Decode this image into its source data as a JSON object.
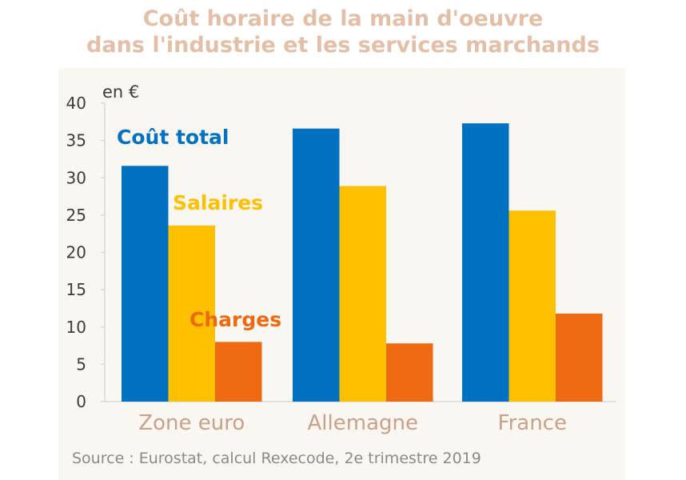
{
  "chart_data": {
    "type": "bar",
    "title_line1": "Coût horaire de la main d'oeuvre",
    "title_line2": "dans l'industrie et les services marchands",
    "unit_label": "en €",
    "categories": [
      "Zone euro",
      "Allemagne",
      "France"
    ],
    "series": [
      {
        "name": "Coût total",
        "color": "#0070c0",
        "values": [
          31.6,
          36.6,
          37.3
        ]
      },
      {
        "name": "Salaires",
        "color": "#ffc000",
        "values": [
          23.6,
          28.9,
          25.6
        ]
      },
      {
        "name": "Charges",
        "color": "#ed6a12",
        "values": [
          8.0,
          7.8,
          11.8
        ]
      }
    ],
    "ylim": [
      0,
      40
    ],
    "yticks": [
      0,
      5,
      10,
      15,
      20,
      25,
      30,
      35,
      40
    ],
    "grid": false,
    "legend": "inline labels",
    "source": "Source : Eurostat, calcul Rexecode,  2e trimestre 2019"
  }
}
